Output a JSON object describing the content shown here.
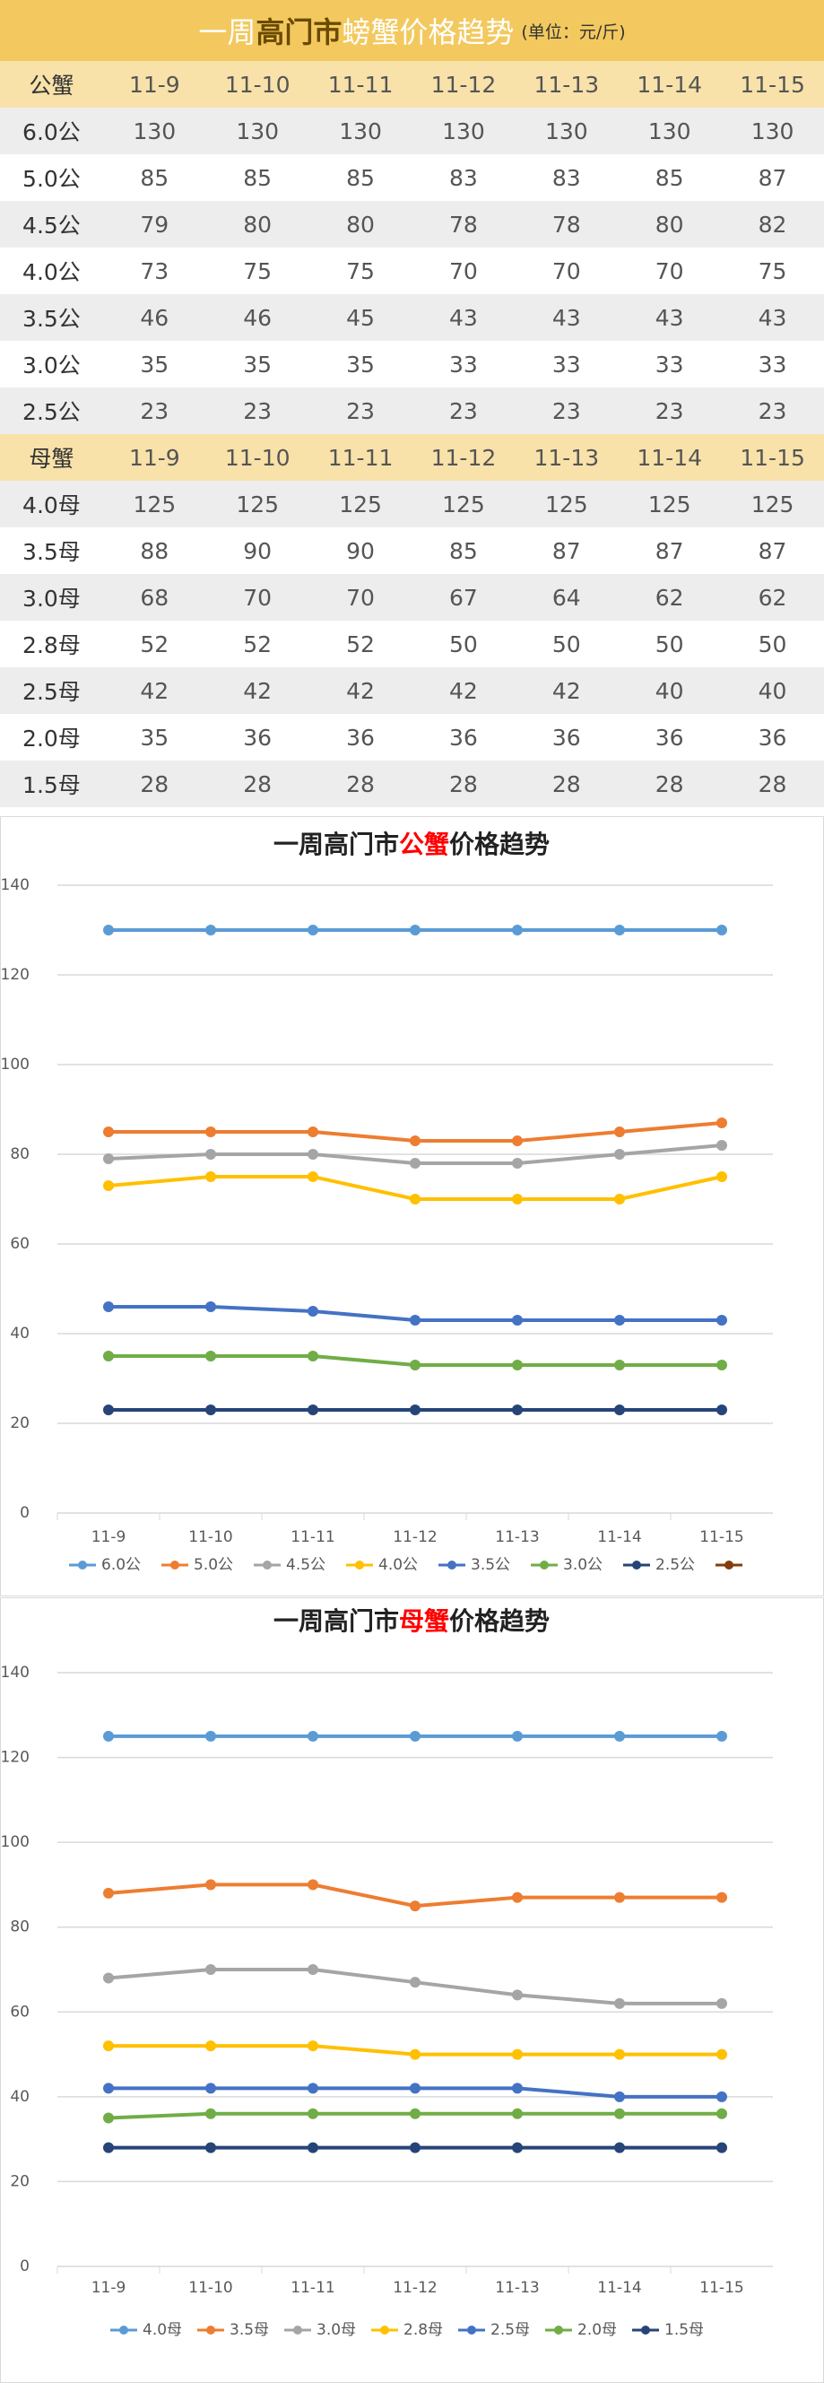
{
  "table": {
    "title_parts": [
      "一周",
      "高门市",
      "螃蟹价格趋势"
    ],
    "unit": "(单位：元/斤)",
    "sections": [
      {
        "header": [
          "公蟹",
          "11-9",
          "11-10",
          "11-11",
          "11-12",
          "11-13",
          "11-14",
          "11-15"
        ],
        "rows": [
          [
            "6.0公",
            130,
            130,
            130,
            130,
            130,
            130,
            130
          ],
          [
            "5.0公",
            85,
            85,
            85,
            83,
            83,
            85,
            87
          ],
          [
            "4.5公",
            79,
            80,
            80,
            78,
            78,
            80,
            82
          ],
          [
            "4.0公",
            73,
            75,
            75,
            70,
            70,
            70,
            75
          ],
          [
            "3.5公",
            46,
            46,
            45,
            43,
            43,
            43,
            43
          ],
          [
            "3.0公",
            35,
            35,
            35,
            33,
            33,
            33,
            33
          ],
          [
            "2.5公",
            23,
            23,
            23,
            23,
            23,
            23,
            23
          ]
        ]
      },
      {
        "header": [
          "母蟹",
          "11-9",
          "11-10",
          "11-11",
          "11-12",
          "11-13",
          "11-14",
          "11-15"
        ],
        "rows": [
          [
            "4.0母",
            125,
            125,
            125,
            125,
            125,
            125,
            125
          ],
          [
            "3.5母",
            88,
            90,
            90,
            85,
            87,
            87,
            87
          ],
          [
            "3.0母",
            68,
            70,
            70,
            67,
            64,
            62,
            62
          ],
          [
            "2.8母",
            52,
            52,
            52,
            50,
            50,
            50,
            50
          ],
          [
            "2.5母",
            42,
            42,
            42,
            42,
            42,
            40,
            40
          ],
          [
            "2.0母",
            35,
            36,
            36,
            36,
            36,
            36,
            36
          ],
          [
            "1.5母",
            28,
            28,
            28,
            28,
            28,
            28,
            28
          ]
        ]
      }
    ]
  },
  "chart_data": [
    {
      "type": "line",
      "title_parts": [
        "一周高门市",
        "公蟹",
        "价格趋势"
      ],
      "categories": [
        "11-9",
        "11-10",
        "11-11",
        "11-12",
        "11-13",
        "11-14",
        "11-15"
      ],
      "ylim": [
        0,
        140
      ],
      "yticks": [
        0,
        20,
        40,
        60,
        80,
        100,
        120,
        140
      ],
      "grid": true,
      "legend": "bottom",
      "series": [
        {
          "name": "6.0公",
          "color": "#5b9bd5",
          "values": [
            130,
            130,
            130,
            130,
            130,
            130,
            130
          ]
        },
        {
          "name": "5.0公",
          "color": "#ed7d31",
          "values": [
            85,
            85,
            85,
            83,
            83,
            85,
            87
          ]
        },
        {
          "name": "4.5公",
          "color": "#a5a5a5",
          "values": [
            79,
            80,
            80,
            78,
            78,
            80,
            82
          ]
        },
        {
          "name": "4.0公",
          "color": "#ffc000",
          "values": [
            73,
            75,
            75,
            70,
            70,
            70,
            75
          ]
        },
        {
          "name": "3.5公",
          "color": "#4472c4",
          "values": [
            46,
            46,
            45,
            43,
            43,
            43,
            43
          ]
        },
        {
          "name": "3.0公",
          "color": "#70ad47",
          "values": [
            35,
            35,
            35,
            33,
            33,
            33,
            33
          ]
        },
        {
          "name": "2.5公",
          "color": "#264478",
          "values": [
            23,
            23,
            23,
            23,
            23,
            23,
            23
          ]
        }
      ]
    },
    {
      "type": "line",
      "title_parts": [
        "一周高门市",
        "母蟹",
        "价格趋势"
      ],
      "categories": [
        "11-9",
        "11-10",
        "11-11",
        "11-12",
        "11-13",
        "11-14",
        "11-15"
      ],
      "ylim": [
        0,
        140
      ],
      "yticks": [
        0,
        20,
        40,
        60,
        80,
        100,
        120,
        140
      ],
      "grid": true,
      "legend": "bottom",
      "series": [
        {
          "name": "4.0母",
          "color": "#5b9bd5",
          "values": [
            125,
            125,
            125,
            125,
            125,
            125,
            125
          ]
        },
        {
          "name": "3.5母",
          "color": "#ed7d31",
          "values": [
            88,
            90,
            90,
            85,
            87,
            87,
            87
          ]
        },
        {
          "name": "3.0母",
          "color": "#a5a5a5",
          "values": [
            68,
            70,
            70,
            67,
            64,
            62,
            62
          ]
        },
        {
          "name": "2.8母",
          "color": "#ffc000",
          "values": [
            52,
            52,
            52,
            50,
            50,
            50,
            50
          ]
        },
        {
          "name": "2.5母",
          "color": "#4472c4",
          "values": [
            42,
            42,
            42,
            42,
            42,
            40,
            40
          ]
        },
        {
          "name": "2.0母",
          "color": "#70ad47",
          "values": [
            35,
            36,
            36,
            36,
            36,
            36,
            36
          ]
        },
        {
          "name": "1.5母",
          "color": "#264478",
          "values": [
            28,
            28,
            28,
            28,
            28,
            28,
            28
          ]
        }
      ]
    }
  ]
}
